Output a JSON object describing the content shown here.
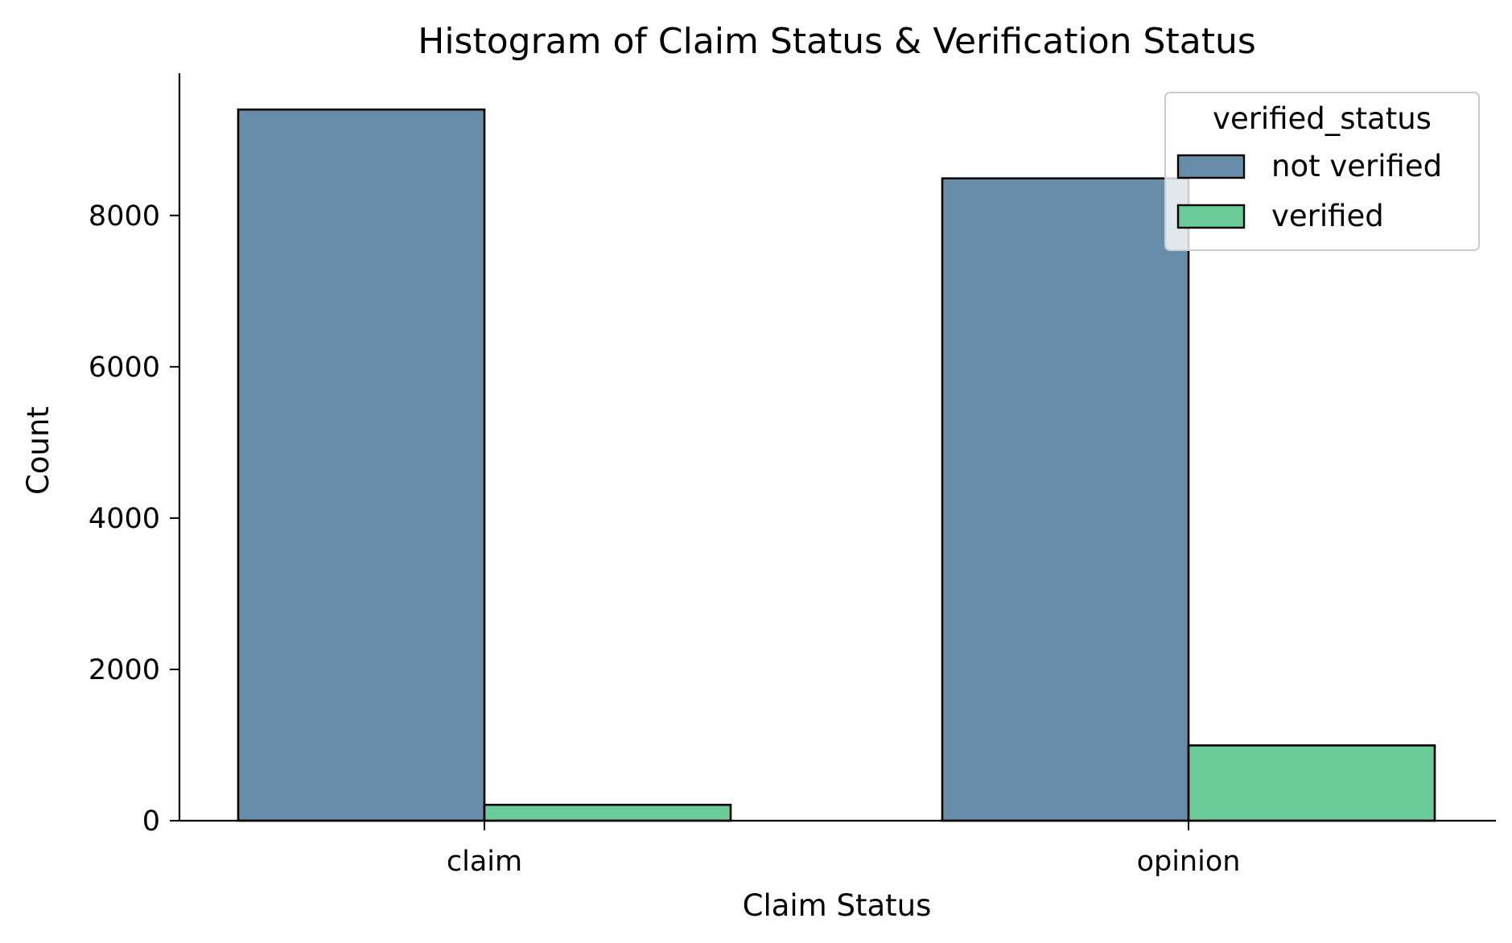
{
  "chart_data": {
    "type": "bar",
    "title": "Histogram of Claim Status & Verification Status",
    "xlabel": "Claim Status",
    "ylabel": "Count",
    "categories": [
      "claim",
      "opinion"
    ],
    "series": [
      {
        "name": "not verified",
        "values": [
          9400,
          8490
        ],
        "color": "#678daa"
      },
      {
        "name": "verified",
        "values": [
          210,
          995
        ],
        "color": "#6acb98"
      }
    ],
    "ylim": [
      0,
      9880
    ],
    "yticks": [
      0,
      2000,
      4000,
      6000,
      8000
    ],
    "legend": {
      "title": "verified_status",
      "placement": "top-right"
    },
    "grid": false
  }
}
